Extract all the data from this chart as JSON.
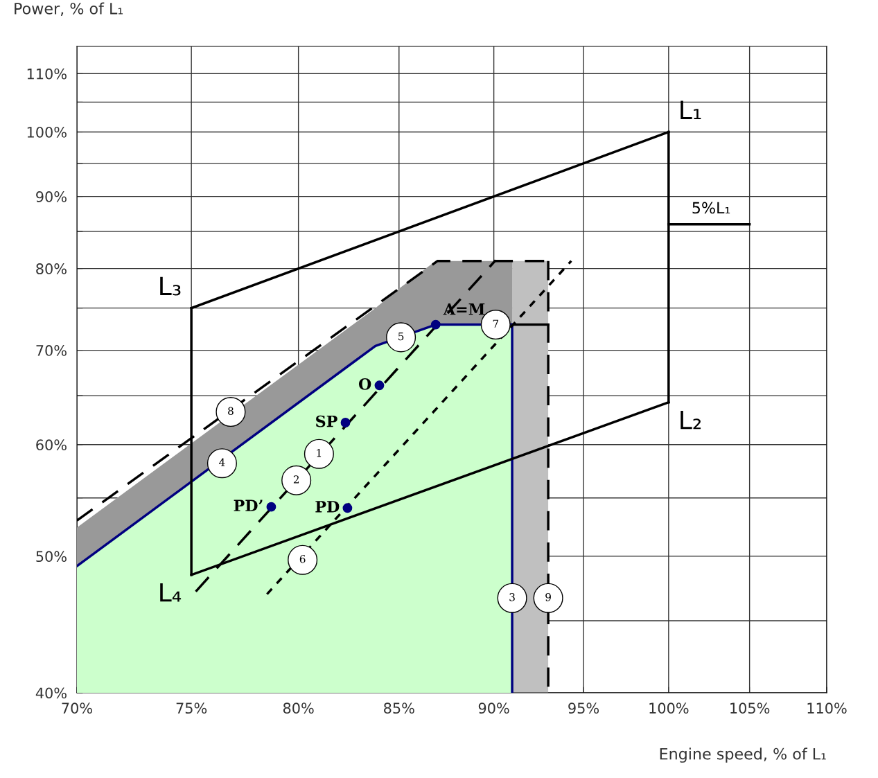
{
  "chart_data": {
    "type": "line",
    "xlabel": "Engine speed, % of L₁",
    "ylabel": "Power, % of L₁",
    "log": "xy",
    "grid": true,
    "legend": false,
    "xlim": [
      70,
      110
    ],
    "ylim": [
      40,
      115
    ],
    "xticks": [
      {
        "value": 70,
        "label": "70%"
      },
      {
        "value": 75,
        "label": "75%"
      },
      {
        "value": 80,
        "label": "80%"
      },
      {
        "value": 85,
        "label": "85%"
      },
      {
        "value": 90,
        "label": "90%"
      },
      {
        "value": 95,
        "label": "95%"
      },
      {
        "value": 100,
        "label": "100%"
      },
      {
        "value": 105,
        "label": "105%"
      },
      {
        "value": 110,
        "label": "110%"
      }
    ],
    "yticks": [
      {
        "value": 40,
        "label": "40%"
      },
      {
        "value": 45,
        "label": null
      },
      {
        "value": 50,
        "label": "50%"
      },
      {
        "value": 55,
        "label": null
      },
      {
        "value": 60,
        "label": "60%"
      },
      {
        "value": 65,
        "label": null
      },
      {
        "value": 70,
        "label": "70%"
      },
      {
        "value": 75,
        "label": null
      },
      {
        "value": 80,
        "label": "80%"
      },
      {
        "value": 85,
        "label": null
      },
      {
        "value": 90,
        "label": "90%"
      },
      {
        "value": 95,
        "label": null
      },
      {
        "value": 100,
        "label": "100%"
      },
      {
        "value": 105,
        "label": null
      },
      {
        "value": 110,
        "label": "110%"
      }
    ],
    "series": [
      {
        "type": "area",
        "color": "#c0c0c0",
        "x": [
          91,
          93
        ],
        "values": [
          81,
          81
        ]
      },
      {
        "type": "area",
        "color": "#999999",
        "x": [
          70,
          83.8,
          85.1,
          86.9,
          91
        ],
        "values": [
          52.4,
          75.0,
          77.6,
          81,
          81
        ]
      },
      {
        "type": "area",
        "color": "#ccffcc",
        "x": [
          70,
          83.8,
          86.9,
          91
        ],
        "values": [
          49.2,
          70.5,
          73,
          73
        ]
      },
      {
        "color": "#000080",
        "line_style": "solid",
        "x": [
          70,
          83.8,
          86.9,
          91
        ],
        "values": [
          49.2,
          70.5,
          73,
          73
        ]
      },
      {
        "color": "#000000",
        "line_style": "dashed",
        "x": [
          70,
          87,
          93
        ],
        "values": [
          53,
          81,
          81
        ]
      },
      {
        "color": "#000000",
        "line_style": "dashed",
        "x": [
          93,
          93
        ],
        "values": [
          81,
          40
        ]
      },
      {
        "color": "#000000",
        "line_style": "solid",
        "x": [
          91,
          93
        ],
        "values": [
          73,
          73
        ]
      },
      {
        "color": "#000080",
        "line_style": "solid",
        "x": [
          91,
          91
        ],
        "values": [
          73,
          40
        ]
      },
      {
        "color": "#000000",
        "line_style": "solid",
        "x": [
          75,
          100
        ],
        "values": [
          75,
          100
        ]
      },
      {
        "color": "#000000",
        "line_style": "solid",
        "x": [
          75,
          100
        ],
        "values": [
          48.5,
          64.3
        ]
      },
      {
        "color": "#000000",
        "line_style": "solid",
        "x": [
          75,
          75
        ],
        "values": [
          48.5,
          75
        ]
      },
      {
        "color": "#000000",
        "line_style": "solid",
        "x": [
          100,
          100
        ],
        "values": [
          64.3,
          100
        ]
      },
      {
        "color": "#000000",
        "line_style": "solid",
        "x": [
          100,
          105
        ],
        "values": [
          86,
          86
        ]
      },
      {
        "color": "#000000",
        "line_style": "dashed",
        "x": [
          75.2,
          90.1
        ],
        "values": [
          47.2,
          81.1
        ]
      },
      {
        "color": "#000000",
        "line_style": "dotted",
        "x": [
          78.5,
          94.3
        ],
        "values": [
          47.0,
          81.0
        ]
      },
      {
        "type": "scatter",
        "name": "O",
        "color": "#000080",
        "marker": "circle",
        "x": [
          84.0
        ],
        "values": [
          66.1
        ]
      },
      {
        "type": "scatter",
        "name": "SP",
        "color": "#000080",
        "marker": "circle",
        "x": [
          82.3
        ],
        "values": [
          62.2
        ]
      },
      {
        "type": "scatter",
        "name": "PD’",
        "color": "#000080",
        "marker": "circle",
        "x": [
          78.7
        ],
        "values": [
          54.2
        ]
      },
      {
        "type": "scatter",
        "name": "PD",
        "color": "#000080",
        "marker": "circle",
        "x": [
          82.4
        ],
        "values": [
          54.1
        ]
      },
      {
        "type": "scatter",
        "name": "A=M",
        "color": "#000080",
        "marker": "circle",
        "x": [
          86.9
        ],
        "values": [
          73.0
        ]
      },
      {
        "type": "scatter",
        "name": "1",
        "color": "#ffffff",
        "marker": "circle",
        "x": [
          81.0
        ],
        "values": [
          59.1
        ]
      },
      {
        "type": "scatter",
        "name": "2",
        "color": "#ffffff",
        "marker": "circle",
        "x": [
          79.9
        ],
        "values": [
          56.6
        ]
      },
      {
        "type": "scatter",
        "name": "3",
        "color": "#ffffff",
        "marker": "circle",
        "x": [
          91
        ],
        "values": [
          46.7
        ]
      },
      {
        "type": "scatter",
        "name": "4",
        "color": "#ffffff",
        "marker": "circle",
        "x": [
          76.4
        ],
        "values": [
          58.2
        ]
      },
      {
        "type": "scatter",
        "name": "5",
        "color": "#ffffff",
        "marker": "circle",
        "x": [
          85.1
        ],
        "values": [
          71.5
        ]
      },
      {
        "type": "scatter",
        "name": "6",
        "color": "#ffffff",
        "marker": "circle",
        "x": [
          80.2
        ],
        "values": [
          49.7
        ]
      },
      {
        "type": "scatter",
        "name": "7",
        "color": "#ffffff",
        "marker": "circle",
        "x": [
          90.1
        ],
        "values": [
          73.0
        ]
      },
      {
        "type": "scatter",
        "name": "8",
        "color": "#ffffff",
        "marker": "circle",
        "x": [
          76.8
        ],
        "values": [
          63.3
        ]
      },
      {
        "type": "scatter",
        "name": "9",
        "color": "#ffffff",
        "marker": "circle",
        "x": [
          93
        ],
        "values": [
          46.7
        ]
      }
    ],
    "annotations": [
      {
        "text": "L₁",
        "x": 100,
        "y": 100
      },
      {
        "text": "L₂",
        "x": 100,
        "y": 64.3
      },
      {
        "text": "L₃",
        "x": 75,
        "y": 75
      },
      {
        "text": "L₄",
        "x": 75,
        "y": 48.5
      },
      {
        "text": "5%L₁",
        "x": 100.8,
        "y": 86
      }
    ]
  }
}
